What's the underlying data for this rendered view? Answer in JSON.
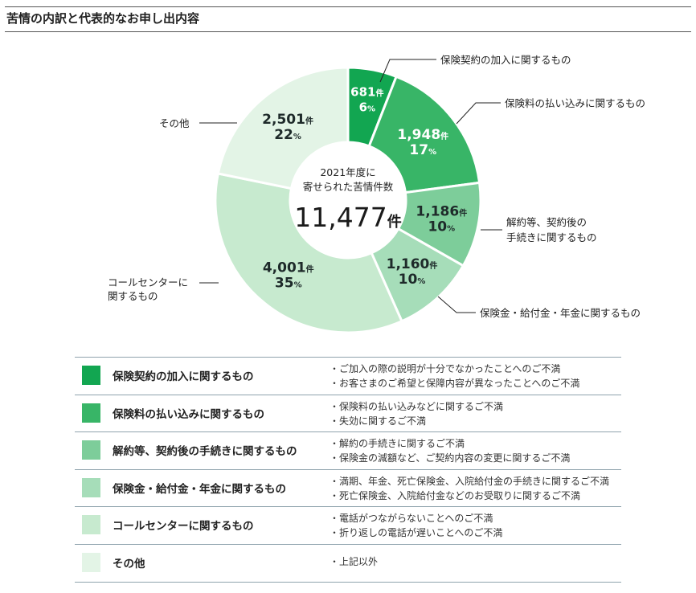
{
  "title": "苦情の内訳と代表的なお申し出内容",
  "chart_data": {
    "type": "pie",
    "variant": "donut",
    "center": {
      "line1": "2021年度に",
      "line2": "寄せられた苦情件数",
      "total": "11,477",
      "unit": "件"
    },
    "slices": [
      {
        "label": "保険契約の加入に関するもの",
        "value": 681,
        "value_text": "681",
        "percent_text": "6",
        "color": "#12a651"
      },
      {
        "label": "保険料の払い込みに関するもの",
        "value": 1948,
        "value_text": "1,948",
        "percent_text": "17",
        "color": "#38b567"
      },
      {
        "label": "解約等、契約後の手続きに関するもの",
        "label_lines": [
          "解約等、契約後の",
          "手続きに関するもの"
        ],
        "value": 1186,
        "value_text": "1,186",
        "percent_text": "10",
        "color": "#7dcd9a"
      },
      {
        "label": "保険金・給付金・年金に関するもの",
        "value": 1160,
        "value_text": "1,160",
        "percent_text": "10",
        "color": "#a6ddb9"
      },
      {
        "label": "コールセンターに関するもの",
        "label_lines": [
          "コールセンターに",
          "関するもの"
        ],
        "value": 4001,
        "value_text": "4,001",
        "percent_text": "35",
        "color": "#c7eacf"
      },
      {
        "label": "その他",
        "value": 2501,
        "value_text": "2,501",
        "percent_text": "22",
        "color": "#e3f4e6"
      }
    ],
    "count_unit": "件",
    "percent_unit": "%"
  },
  "table": {
    "rows": [
      {
        "category": "保険契約の加入に関するもの",
        "color": "#12a651",
        "examples": [
          "・ご加入の際の説明が十分でなかったことへのご不満",
          "・お客さまのご希望と保障内容が異なったことへのご不満"
        ]
      },
      {
        "category": "保険料の払い込みに関するもの",
        "color": "#38b567",
        "examples": [
          "・保険料の払い込みなどに関するご不満",
          "・失効に関するご不満"
        ]
      },
      {
        "category": "解約等、契約後の手続きに関するもの",
        "color": "#7dcd9a",
        "examples": [
          "・解約の手続きに関するご不満",
          "・保険金の減額など、ご契約内容の変更に関するご不満"
        ]
      },
      {
        "category": "保険金・給付金・年金に関するもの",
        "color": "#a6ddb9",
        "examples": [
          "・満期、年金、死亡保険金、入院給付金の手続きに関するご不満",
          "・死亡保険金、入院給付金などのお受取りに関するご不満"
        ]
      },
      {
        "category": "コールセンターに関するもの",
        "color": "#c7eacf",
        "examples": [
          "・電話がつながらないことへのご不満",
          "・折り返しの電話が遅いことへのご不満"
        ]
      },
      {
        "category": "その他",
        "color": "#e3f4e6",
        "examples": [
          "・上記以外"
        ]
      }
    ]
  }
}
